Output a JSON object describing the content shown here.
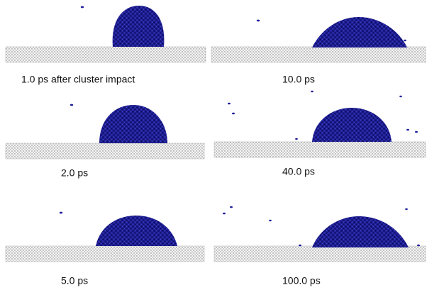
{
  "panels": [
    {
      "label": "1.0 ps after cluster impact"
    },
    {
      "label": "10.0 ps"
    },
    {
      "label": "2.0 ps"
    },
    {
      "label": "40.0 ps"
    },
    {
      "label": "5.0 ps"
    },
    {
      "label": "100.0 ps"
    }
  ]
}
